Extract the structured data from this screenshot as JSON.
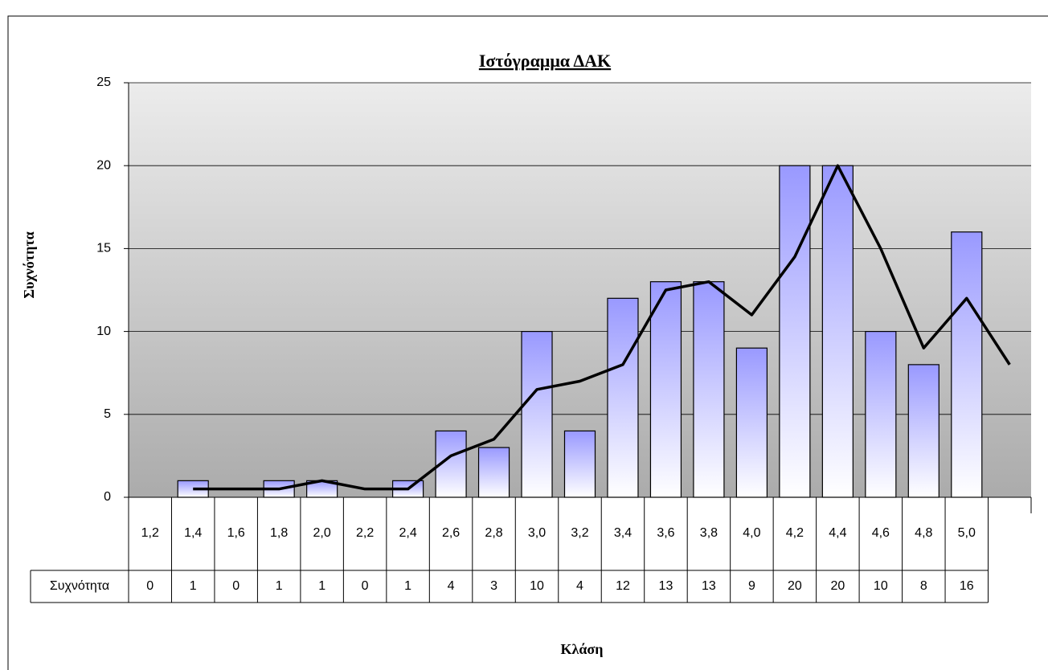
{
  "chart_data": {
    "type": "bar",
    "title": "Ιστόγραμμα ΔΑΚ",
    "x_label": "Κλάση",
    "y_label": "Συχνότητα",
    "categories": [
      "1,2",
      "1,4",
      "1,6",
      "1,8",
      "2,0",
      "2,2",
      "2,4",
      "2,6",
      "2,8",
      "3,0",
      "3,2",
      "3,4",
      "3,6",
      "3,8",
      "4,0",
      "4,2",
      "4,4",
      "4,6",
      "4,8",
      "5,0",
      null
    ],
    "series": [
      {
        "name": "Συχνότητα",
        "type": "bar",
        "color": "#9999ff",
        "values": [
          0,
          1,
          0,
          1,
          1,
          0,
          1,
          4,
          3,
          10,
          4,
          12,
          13,
          13,
          9,
          20,
          20,
          10,
          8,
          16,
          null
        ]
      },
      {
        "type": "line",
        "color": "#000000",
        "values": [
          null,
          0.5,
          0.5,
          0.5,
          1,
          0.5,
          0.5,
          2.5,
          3.5,
          6.5,
          7,
          8,
          12.5,
          13,
          11,
          14.5,
          20,
          15,
          9,
          12,
          8
        ]
      }
    ],
    "ylim": [
      0,
      25
    ],
    "yticks": [
      0,
      5,
      10,
      15,
      20,
      25
    ],
    "grid": true,
    "data_table": true
  }
}
